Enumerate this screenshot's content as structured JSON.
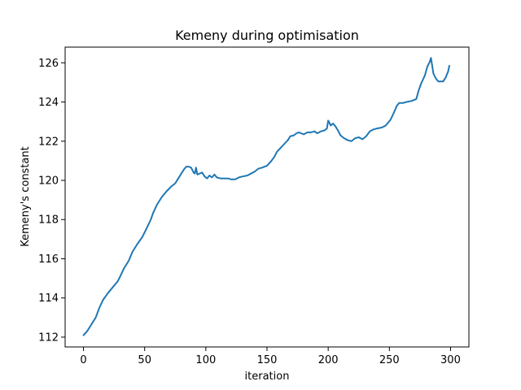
{
  "chart_data": {
    "type": "line",
    "title": "Kemeny during optimisation",
    "xlabel": "iteration",
    "ylabel": "Kemeny's constant",
    "xlim": [
      -15,
      315
    ],
    "ylim": [
      111.5,
      126.8
    ],
    "xticks": [
      0,
      50,
      100,
      150,
      200,
      250,
      300
    ],
    "yticks": [
      112,
      114,
      116,
      118,
      120,
      122,
      124,
      126
    ],
    "grid": false,
    "color": "#1f77b4",
    "series": [
      {
        "points": [
          [
            0,
            112.1
          ],
          [
            3,
            112.3
          ],
          [
            6,
            112.6
          ],
          [
            10,
            113.0
          ],
          [
            13,
            113.5
          ],
          [
            16,
            113.9
          ],
          [
            20,
            114.25
          ],
          [
            24,
            114.55
          ],
          [
            28,
            114.85
          ],
          [
            30,
            115.1
          ],
          [
            33,
            115.5
          ],
          [
            37,
            115.9
          ],
          [
            40,
            116.35
          ],
          [
            44,
            116.75
          ],
          [
            48,
            117.1
          ],
          [
            52,
            117.6
          ],
          [
            55,
            118.0
          ],
          [
            57,
            118.35
          ],
          [
            60,
            118.75
          ],
          [
            64,
            119.15
          ],
          [
            68,
            119.45
          ],
          [
            72,
            119.7
          ],
          [
            75,
            119.85
          ],
          [
            77,
            120.05
          ],
          [
            80,
            120.35
          ],
          [
            82,
            120.55
          ],
          [
            84,
            120.7
          ],
          [
            86,
            120.7
          ],
          [
            88,
            120.65
          ],
          [
            90,
            120.4
          ],
          [
            91,
            120.35
          ],
          [
            92,
            120.65
          ],
          [
            93,
            120.3
          ],
          [
            95,
            120.35
          ],
          [
            97,
            120.4
          ],
          [
            99,
            120.2
          ],
          [
            101,
            120.1
          ],
          [
            103,
            120.25
          ],
          [
            105,
            120.15
          ],
          [
            107,
            120.3
          ],
          [
            109,
            120.15
          ],
          [
            112,
            120.1
          ],
          [
            115,
            120.1
          ],
          [
            118,
            120.1
          ],
          [
            121,
            120.05
          ],
          [
            124,
            120.05
          ],
          [
            127,
            120.15
          ],
          [
            130,
            120.2
          ],
          [
            134,
            120.25
          ],
          [
            137,
            120.35
          ],
          [
            140,
            120.45
          ],
          [
            143,
            120.6
          ],
          [
            146,
            120.65
          ],
          [
            150,
            120.75
          ],
          [
            153,
            120.95
          ],
          [
            156,
            121.2
          ],
          [
            158,
            121.45
          ],
          [
            161,
            121.65
          ],
          [
            164,
            121.85
          ],
          [
            167,
            122.05
          ],
          [
            169,
            122.25
          ],
          [
            172,
            122.3
          ],
          [
            174,
            122.4
          ],
          [
            176,
            122.45
          ],
          [
            178,
            122.4
          ],
          [
            180,
            122.35
          ],
          [
            183,
            122.45
          ],
          [
            186,
            122.45
          ],
          [
            189,
            122.5
          ],
          [
            191,
            122.4
          ],
          [
            194,
            122.5
          ],
          [
            197,
            122.55
          ],
          [
            199,
            122.65
          ],
          [
            200,
            123.05
          ],
          [
            201,
            122.95
          ],
          [
            202,
            122.8
          ],
          [
            204,
            122.9
          ],
          [
            206,
            122.75
          ],
          [
            208,
            122.55
          ],
          [
            210,
            122.3
          ],
          [
            213,
            122.15
          ],
          [
            216,
            122.05
          ],
          [
            219,
            122.0
          ],
          [
            222,
            122.15
          ],
          [
            225,
            122.2
          ],
          [
            228,
            122.1
          ],
          [
            231,
            122.25
          ],
          [
            234,
            122.5
          ],
          [
            237,
            122.6
          ],
          [
            240,
            122.65
          ],
          [
            244,
            122.7
          ],
          [
            247,
            122.8
          ],
          [
            251,
            123.1
          ],
          [
            254,
            123.5
          ],
          [
            256,
            123.8
          ],
          [
            258,
            123.95
          ],
          [
            261,
            123.95
          ],
          [
            264,
            124.0
          ],
          [
            268,
            124.05
          ],
          [
            272,
            124.15
          ],
          [
            274,
            124.6
          ],
          [
            276,
            124.95
          ],
          [
            279,
            125.35
          ],
          [
            281,
            125.8
          ],
          [
            283,
            126.05
          ],
          [
            284,
            126.25
          ],
          [
            285,
            125.85
          ],
          [
            286,
            125.45
          ],
          [
            288,
            125.2
          ],
          [
            290,
            125.05
          ],
          [
            292,
            125.05
          ],
          [
            294,
            125.05
          ],
          [
            296,
            125.25
          ],
          [
            298,
            125.55
          ],
          [
            299,
            125.85
          ]
        ]
      }
    ]
  }
}
